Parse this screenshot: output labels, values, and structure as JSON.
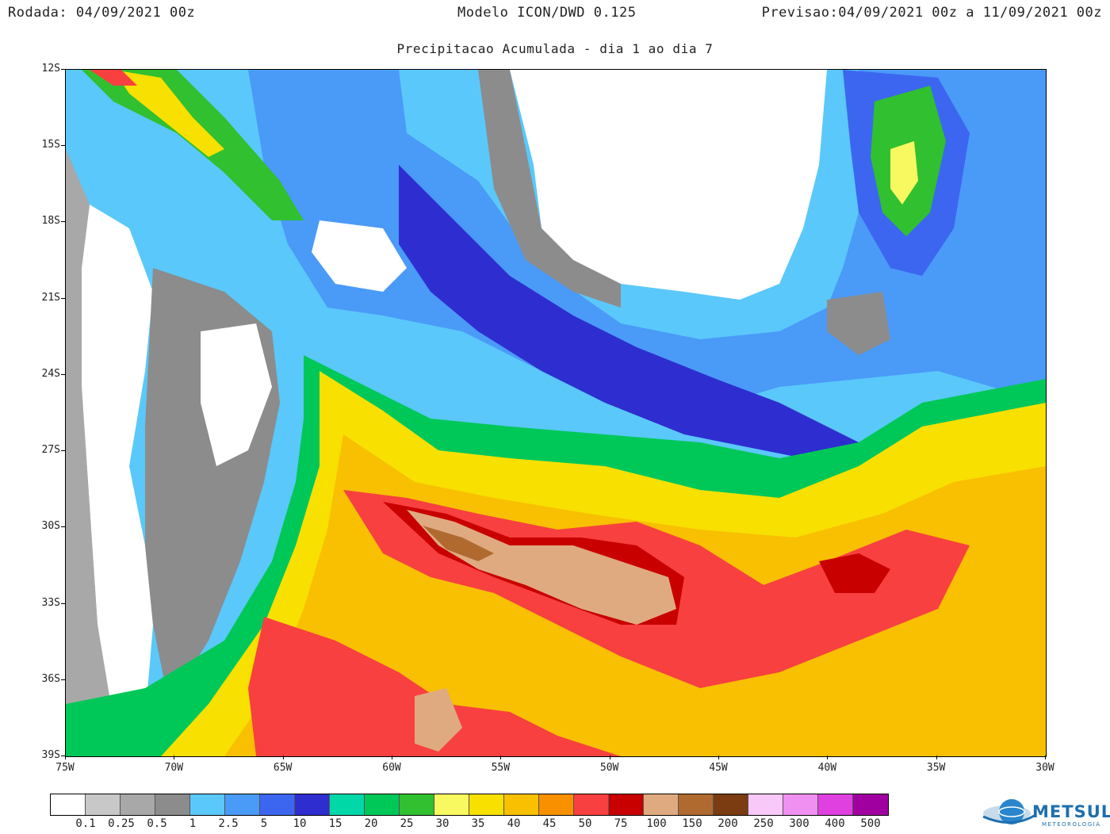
{
  "header": {
    "left": "Rodada: 04/09/2021 00z",
    "center": "Modelo ICON/DWD 0.125",
    "right": "Previsao:04/09/2021 00z a 11/09/2021 00z"
  },
  "subtitle": "Precipitacao Acumulada - dia 1 ao dia 7",
  "axes": {
    "lat_labels": [
      "12S",
      "15S",
      "18S",
      "21S",
      "24S",
      "27S",
      "30S",
      "33S",
      "36S",
      "39S"
    ],
    "lon_labels": [
      "75W",
      "70W",
      "65W",
      "60W",
      "55W",
      "50W",
      "45W",
      "40W",
      "35W",
      "30W"
    ]
  },
  "legend": {
    "colors": [
      "#ffffff",
      "#c8c8c8",
      "#a8a8a8",
      "#8c8c8c",
      "#5ac8fa",
      "#4a9af8",
      "#3c66f0",
      "#2e2ed0",
      "#00d8a8",
      "#00c858",
      "#30c030",
      "#f8f860",
      "#f8e000",
      "#f8c000",
      "#f89000",
      "#f84040",
      "#c80000",
      "#e0aa80",
      "#b06a30",
      "#7a3c10",
      "#f8c8f8",
      "#f090f0",
      "#e040e0",
      "#a000a0"
    ],
    "labels": [
      "0.1",
      "0.25",
      "0.5",
      "1",
      "2.5",
      "5",
      "10",
      "15",
      "20",
      "25",
      "30",
      "35",
      "40",
      "45",
      "50",
      "75",
      "100",
      "150",
      "200",
      "250",
      "300",
      "400",
      "500"
    ]
  },
  "logo": {
    "name": "METSUL",
    "tagline": "METEOROLOGIA"
  },
  "map_regions": [
    {
      "name": "precipitation-bg-ocean-blue",
      "color": "#4a9af8"
    },
    {
      "name": "precipitation-heavy-band",
      "color": "#f84040"
    },
    {
      "name": "precipitation-extreme-core",
      "color": "#e0aa80"
    },
    {
      "name": "dry-andes-zone",
      "color": "#ffffff"
    },
    {
      "name": "dry-brazil-interior",
      "color": "#ffffff"
    }
  ]
}
